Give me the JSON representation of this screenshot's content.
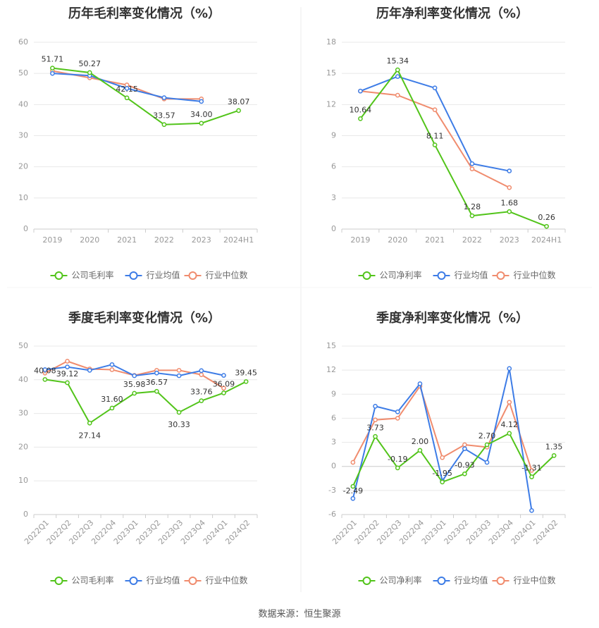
{
  "colors": {
    "company": "#52c41a",
    "industry_avg": "#3d7ce6",
    "industry_median": "#f08c6e",
    "grid": "#e8e8e8",
    "axis": "#cccccc"
  },
  "legend_labels": {
    "gross": [
      "公司毛利率",
      "行业均值",
      "行业中位数"
    ],
    "net": [
      "公司净利率",
      "行业均值",
      "行业中位数"
    ]
  },
  "footer": {
    "source": "数据来源：恒生聚源"
  },
  "chart_data": [
    {
      "type": "line",
      "title": "历年毛利率变化情况（%）",
      "categories": [
        "2019",
        "2020",
        "2021",
        "2022",
        "2023",
        "2024H1"
      ],
      "ylim": [
        0,
        60
      ],
      "yticks": [
        0,
        10,
        20,
        30,
        40,
        50,
        60
      ],
      "grid": true,
      "legend": "bottom",
      "series": [
        {
          "name": "公司毛利率",
          "values": [
            51.71,
            50.27,
            42.15,
            33.57,
            34.0,
            38.07
          ],
          "labels": [
            "51.71",
            "50.27",
            "42.15",
            "33.57",
            "34.00",
            "38.07"
          ]
        },
        {
          "name": "行业均值",
          "values": [
            50.0,
            49.3,
            45.2,
            42.2,
            41.0,
            null
          ]
        },
        {
          "name": "行业中位数",
          "values": [
            50.8,
            48.6,
            46.3,
            41.8,
            41.8,
            null
          ]
        }
      ]
    },
    {
      "type": "line",
      "title": "历年净利率变化情况（%）",
      "categories": [
        "2019",
        "2020",
        "2021",
        "2022",
        "2023",
        "2024H1"
      ],
      "ylim": [
        0,
        18
      ],
      "yticks": [
        0,
        3,
        6,
        9,
        12,
        15,
        18
      ],
      "grid": true,
      "legend": "bottom",
      "series": [
        {
          "name": "公司净利率",
          "values": [
            10.64,
            15.34,
            8.11,
            1.28,
            1.68,
            0.26
          ],
          "labels": [
            "10.64",
            "15.34",
            "8.11",
            "1.28",
            "1.68",
            "0.26"
          ]
        },
        {
          "name": "行业均值",
          "values": [
            13.3,
            14.7,
            13.6,
            6.3,
            5.6,
            null
          ]
        },
        {
          "name": "行业中位数",
          "values": [
            13.3,
            12.9,
            11.5,
            5.8,
            4.0,
            null
          ]
        }
      ]
    },
    {
      "type": "line",
      "title": "季度毛利率变化情况（%）",
      "categories": [
        "2022Q1",
        "2022Q2",
        "2022Q3",
        "2022Q4",
        "2023Q1",
        "2023Q2",
        "2023Q3",
        "2023Q4",
        "2024Q1",
        "2024Q2"
      ],
      "ylim": [
        0,
        50
      ],
      "yticks": [
        0,
        10,
        20,
        30,
        40,
        50
      ],
      "grid": true,
      "legend": "bottom",
      "series": [
        {
          "name": "公司毛利率",
          "values": [
            40.08,
            39.12,
            27.14,
            31.6,
            35.98,
            36.57,
            30.33,
            33.76,
            36.09,
            39.45
          ],
          "labels": [
            "40.08",
            "39.12",
            "27.14",
            "31.60",
            "35.98",
            "36.57",
            "30.33",
            "33.76",
            "36.09",
            "39.45"
          ]
        },
        {
          "name": "行业均值",
          "values": [
            43.0,
            43.8,
            42.8,
            44.5,
            41.2,
            42.0,
            41.2,
            42.7,
            41.3,
            null
          ]
        },
        {
          "name": "行业中位数",
          "values": [
            42.0,
            45.5,
            43.2,
            43.0,
            41.3,
            42.8,
            42.8,
            41.5,
            37.5,
            null
          ]
        }
      ]
    },
    {
      "type": "line",
      "title": "季度净利率变化情况（%）",
      "categories": [
        "2022Q1",
        "2022Q2",
        "2022Q3",
        "2022Q4",
        "2023Q1",
        "2023Q2",
        "2023Q3",
        "2023Q4",
        "2024Q1",
        "2024Q2"
      ],
      "ylim": [
        -6,
        15
      ],
      "yticks": [
        -6,
        -3,
        0,
        3,
        6,
        9,
        12,
        15
      ],
      "grid": true,
      "legend": "bottom",
      "series": [
        {
          "name": "公司净利率",
          "values": [
            -2.49,
            3.73,
            -0.19,
            2.0,
            -1.95,
            -0.93,
            2.7,
            4.12,
            -1.31,
            1.35
          ],
          "labels": [
            "-2.49",
            "3.73",
            "-0.19",
            "2.00",
            "-1.95",
            "-0.93",
            "2.70",
            "4.12",
            "-1.31",
            "1.35"
          ]
        },
        {
          "name": "行业均值",
          "values": [
            -4.0,
            7.5,
            6.8,
            10.3,
            -1.8,
            2.2,
            0.5,
            12.2,
            -5.5,
            null
          ]
        },
        {
          "name": "行业中位数",
          "values": [
            0.5,
            5.8,
            6.0,
            10.0,
            1.1,
            2.7,
            2.4,
            8.0,
            -0.5,
            null
          ]
        }
      ]
    }
  ]
}
